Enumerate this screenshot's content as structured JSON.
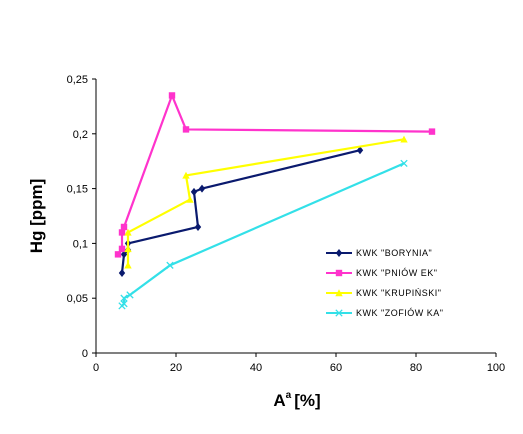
{
  "chart_data": {
    "type": "line",
    "title": "",
    "xlabel": "A",
    "xlabel_superscript": "a",
    "xlabel_unit": "[%]",
    "ylabel": "Hg [ppm]",
    "xlim": [
      0,
      100
    ],
    "ylim": [
      0,
      0.25
    ],
    "x_ticks": [
      0,
      20,
      40,
      60,
      80,
      100
    ],
    "y_ticks": [
      "0",
      "0,05",
      "0,1",
      "0,15",
      "0,2",
      "0,25"
    ],
    "grid": false,
    "legend_position": "right",
    "series": [
      {
        "name": "KWK \"BORYNIA\"",
        "color": "#0a1a6e",
        "marker": "diamond",
        "points": [
          [
            6.5,
            0.073
          ],
          [
            7,
            0.09
          ],
          [
            8,
            0.094
          ],
          [
            8,
            0.1
          ],
          [
            25.5,
            0.115
          ],
          [
            24.5,
            0.147
          ],
          [
            26.5,
            0.15
          ],
          [
            66,
            0.185
          ]
        ]
      },
      {
        "name": "KWK \"PNIÓW EK\"",
        "color": "#ff33cc",
        "marker": "square",
        "points": [
          [
            5.5,
            0.09
          ],
          [
            6.5,
            0.095
          ],
          [
            6.5,
            0.11
          ],
          [
            7,
            0.115
          ],
          [
            19,
            0.235
          ],
          [
            22.5,
            0.204
          ],
          [
            84,
            0.202
          ]
        ]
      },
      {
        "name": "KWK \"KRUPIŃSKI\"",
        "color": "#ffff00",
        "marker": "triangle",
        "points": [
          [
            8,
            0.08
          ],
          [
            8,
            0.095
          ],
          [
            8,
            0.11
          ],
          [
            23.5,
            0.14
          ],
          [
            22.5,
            0.162
          ],
          [
            77,
            0.195
          ]
        ]
      },
      {
        "name": "KWK \"ZOFIÓW KA\"",
        "color": "#33e0e8",
        "marker": "x",
        "points": [
          [
            6.5,
            0.043
          ],
          [
            7,
            0.045
          ],
          [
            7,
            0.05
          ],
          [
            8.5,
            0.053
          ],
          [
            18.5,
            0.08
          ],
          [
            77,
            0.173
          ]
        ]
      }
    ]
  }
}
